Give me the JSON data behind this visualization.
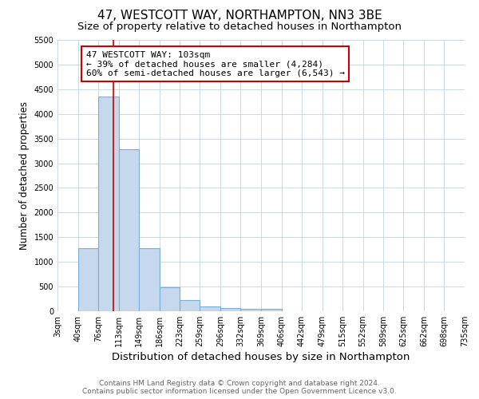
{
  "title": "47, WESTCOTT WAY, NORTHAMPTON, NN3 3BE",
  "subtitle": "Size of property relative to detached houses in Northampton",
  "xlabel": "Distribution of detached houses by size in Northampton",
  "ylabel": "Number of detached properties",
  "bar_color": "#c5d8ee",
  "bar_edge_color": "#7bafd4",
  "bins": [
    3,
    40,
    76,
    113,
    149,
    186,
    223,
    259,
    296,
    332,
    369,
    406,
    442,
    479,
    515,
    552,
    589,
    625,
    662,
    698,
    735
  ],
  "counts": [
    0,
    1280,
    4350,
    3280,
    1280,
    490,
    230,
    90,
    65,
    50,
    55,
    0,
    0,
    0,
    0,
    0,
    0,
    0,
    0,
    0
  ],
  "ylim": [
    0,
    5500
  ],
  "yticks": [
    0,
    500,
    1000,
    1500,
    2000,
    2500,
    3000,
    3500,
    4000,
    4500,
    5000,
    5500
  ],
  "property_size": 103,
  "property_name": "47 WESTCOTT WAY: 103sqm",
  "annotation_line1": "← 39% of detached houses are smaller (4,284)",
  "annotation_line2": "60% of semi-detached houses are larger (6,543) →",
  "vline_color": "#cc0000",
  "annotation_box_color": "#ffffff",
  "annotation_box_edgecolor": "#cc0000",
  "footer_line1": "Contains HM Land Registry data © Crown copyright and database right 2024.",
  "footer_line2": "Contains public sector information licensed under the Open Government Licence v3.0.",
  "bg_color": "#ffffff",
  "grid_color": "#c8d8e8",
  "title_fontsize": 11,
  "subtitle_fontsize": 9.5,
  "tick_label_fontsize": 7,
  "ylabel_fontsize": 8.5,
  "xlabel_fontsize": 9.5,
  "footer_fontsize": 6.5,
  "annotation_fontsize": 8
}
